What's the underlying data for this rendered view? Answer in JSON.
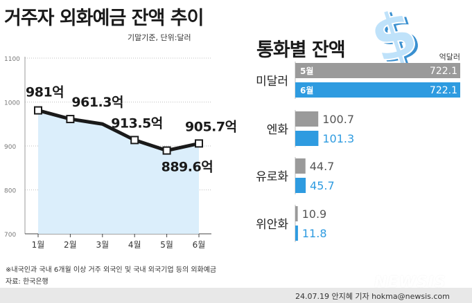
{
  "header": {
    "title": "거주자 외화예금 잔액 추이",
    "basis_unit": "기말기준, 단위:달러"
  },
  "footer": {
    "note": "※내국인과 국내 6개월 이상 거주 외국인 및 국내 외국기업 등의 외화예금",
    "source": "자료: 한국은행",
    "byline": "24.07.19 안지혜 기자 hokma@newsis.com",
    "watermark": "NEWSIS"
  },
  "colors": {
    "line": "#1a1a1a",
    "area_fill": "#dbeefb",
    "may_bar": "#9a9a9a",
    "june_bar": "#2e9be0",
    "grid": "#bdbdbd"
  },
  "chart_data": [
    {
      "type": "line",
      "title": "거주자 외화예금 잔액 추이",
      "categories": [
        "1월",
        "2월",
        "3월",
        "4월",
        "5월",
        "6월"
      ],
      "values": [
        981,
        961.3,
        950,
        913.5,
        889.6,
        905.7
      ],
      "point_labels": [
        "981억",
        "961.3억",
        "",
        "913.5억",
        "889.6억",
        "905.7억"
      ],
      "ylim": [
        700,
        1100
      ],
      "yticks": [
        "700",
        "800",
        "900",
        "1000",
        "1100"
      ],
      "grid": true,
      "area_fill": true
    },
    {
      "type": "bar",
      "title": "통화별 잔액",
      "unit": "억달러",
      "categories": [
        "미달러",
        "엔화",
        "유로화",
        "위안화"
      ],
      "series": [
        {
          "name": "5월",
          "values": [
            722.1,
            100.7,
            44.7,
            10.9
          ],
          "labels": [
            "722.1",
            "100.7",
            "44.7",
            "10.9"
          ]
        },
        {
          "name": "6월",
          "values": [
            722.1,
            101.3,
            45.7,
            11.8
          ],
          "labels": [
            "722.1",
            "101.3",
            "45.7",
            "11.8"
          ]
        }
      ]
    }
  ]
}
